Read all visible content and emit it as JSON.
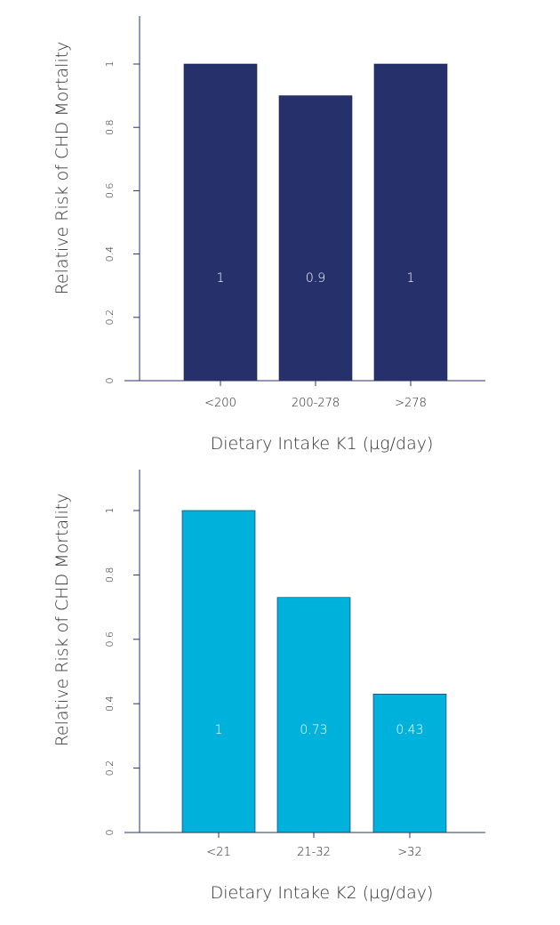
{
  "chart_data": [
    {
      "type": "bar",
      "categories": [
        "<200",
        "200-278",
        ">278"
      ],
      "values": [
        1.0,
        0.9,
        1.0
      ],
      "data_labels": [
        "1",
        "0.9",
        "1"
      ],
      "title": "",
      "xlabel": "Dietary Intake K1 (µg/day)",
      "ylabel": "Relative Risk of CHD Mortality",
      "ylim": [
        0,
        1.15
      ],
      "yticks": [
        "0",
        "0.2",
        "0.4",
        "0.6",
        "0.8",
        "1"
      ],
      "ytick_values": [
        0,
        0.2,
        0.4,
        0.6,
        0.8,
        1.0
      ],
      "grid": false,
      "color": "#26306b"
    },
    {
      "type": "bar",
      "categories": [
        "<21",
        "21-32",
        ">32"
      ],
      "values": [
        1.0,
        0.73,
        0.43
      ],
      "data_labels": [
        "1",
        "0.73",
        "0.43"
      ],
      "title": "",
      "xlabel": "Dietary Intake K2 (µg/day)",
      "ylabel": "Relative Risk of CHD Mortality",
      "ylim": [
        0,
        1.15
      ],
      "yticks": [
        "0",
        "0.2",
        "0.4",
        "0.6",
        "0.8",
        "1"
      ],
      "ytick_values": [
        0,
        0.2,
        0.4,
        0.6,
        0.8,
        1.0
      ],
      "grid": false,
      "color": "#00b2db"
    }
  ]
}
